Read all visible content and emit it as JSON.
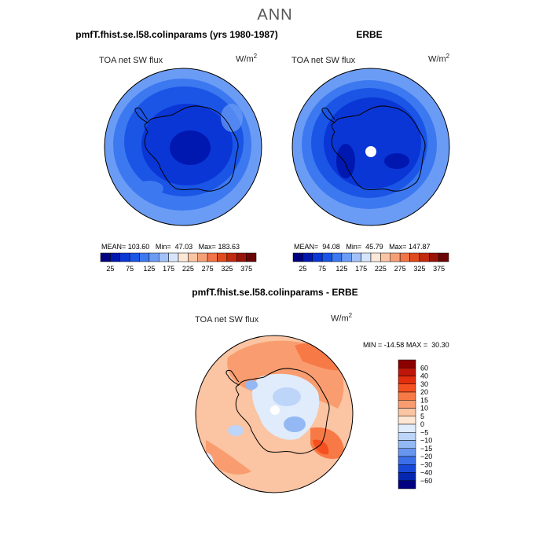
{
  "title": "ANN",
  "panels": [
    {
      "title": "pmfT.fhist.se.l58.colinparams (yrs 1980-1987)",
      "variable": "TOA net SW flux",
      "units": "W/m",
      "units_exp": "2",
      "stats": {
        "mean_label": "MEAN=",
        "mean": "103.60",
        "min_label": "Min=",
        "min": "47.03",
        "max_label": "Max=",
        "max": "183.63"
      }
    },
    {
      "title": "ERBE",
      "variable": "TOA net SW flux",
      "units": "W/m",
      "units_exp": "2",
      "stats": {
        "mean_label": "MEAN=",
        "mean": "94.08",
        "min_label": "Min=",
        "min": "45.79",
        "max_label": "Max=",
        "max": "147.87"
      }
    },
    {
      "title": "pmfT.fhist.se.l58.colinparams - ERBE",
      "variable": "TOA net SW flux",
      "units": "W/m",
      "units_exp": "2",
      "stats": {
        "min_label": "MIN =",
        "min": "-14.58",
        "max_label": "MAX =",
        "max": "30.30"
      }
    }
  ],
  "chart_data": [
    {
      "type": "heatmap",
      "projection": "polar stereographic (south pole)",
      "title": "pmfT.fhist.se.l58.colinparams (yrs 1980-1987)",
      "variable": "TOA net SW flux",
      "units": "W/m^2",
      "mean": 103.6,
      "min": 47.03,
      "max": 183.63,
      "colorbar": {
        "orientation": "horizontal",
        "levels": [
          25,
          50,
          75,
          100,
          125,
          150,
          175,
          200,
          225,
          250,
          275,
          300,
          325,
          350,
          375
        ],
        "tick_labels": [
          "25",
          "75",
          "125",
          "175",
          "225",
          "275",
          "325",
          "375"
        ],
        "colors": [
          "#000080",
          "#0018b0",
          "#0a36d6",
          "#1a55e6",
          "#3c78f0",
          "#6b9cf5",
          "#a2c1f9",
          "#d6e5fb",
          "#fde7d6",
          "#f9c5a4",
          "#f69f77",
          "#f07446",
          "#e04a1e",
          "#c22a0f",
          "#98130a",
          "#6b0505"
        ]
      }
    },
    {
      "type": "heatmap",
      "projection": "polar stereographic (south pole)",
      "title": "ERBE",
      "variable": "TOA net SW flux",
      "units": "W/m^2",
      "mean": 94.08,
      "min": 45.79,
      "max": 147.87,
      "colorbar": {
        "orientation": "horizontal",
        "levels": [
          25,
          50,
          75,
          100,
          125,
          150,
          175,
          200,
          225,
          250,
          275,
          300,
          325,
          350,
          375
        ],
        "tick_labels": [
          "25",
          "75",
          "125",
          "175",
          "225",
          "275",
          "325",
          "375"
        ],
        "colors": [
          "#000080",
          "#0018b0",
          "#0a36d6",
          "#1a55e6",
          "#3c78f0",
          "#6b9cf5",
          "#a2c1f9",
          "#d6e5fb",
          "#fde7d6",
          "#f9c5a4",
          "#f69f77",
          "#f07446",
          "#e04a1e",
          "#c22a0f",
          "#98130a",
          "#6b0505"
        ]
      }
    },
    {
      "type": "heatmap",
      "projection": "polar stereographic (south pole)",
      "title": "pmfT.fhist.se.l58.colinparams - ERBE",
      "variable": "TOA net SW flux",
      "units": "W/m^2",
      "min": -14.58,
      "max": 30.3,
      "colorbar": {
        "orientation": "vertical",
        "levels": [
          -60,
          -40,
          -30,
          -20,
          -15,
          -10,
          -5,
          0,
          5,
          10,
          15,
          20,
          30,
          40,
          60
        ],
        "tick_labels": [
          "60",
          "40",
          "30",
          "20",
          "15",
          "10",
          "5",
          "0",
          "−5",
          "−10",
          "−15",
          "−20",
          "−30",
          "−40",
          "−60"
        ],
        "colors": [
          "#8b0000",
          "#c0150a",
          "#e32e0e",
          "#f5501f",
          "#f77a46",
          "#f99d70",
          "#fbc4a2",
          "#fde6d3",
          "#e0ecfb",
          "#bcd5f8",
          "#93b8f4",
          "#6896ee",
          "#3b6ee8",
          "#1948d8",
          "#0526b0",
          "#000080"
        ]
      }
    }
  ]
}
